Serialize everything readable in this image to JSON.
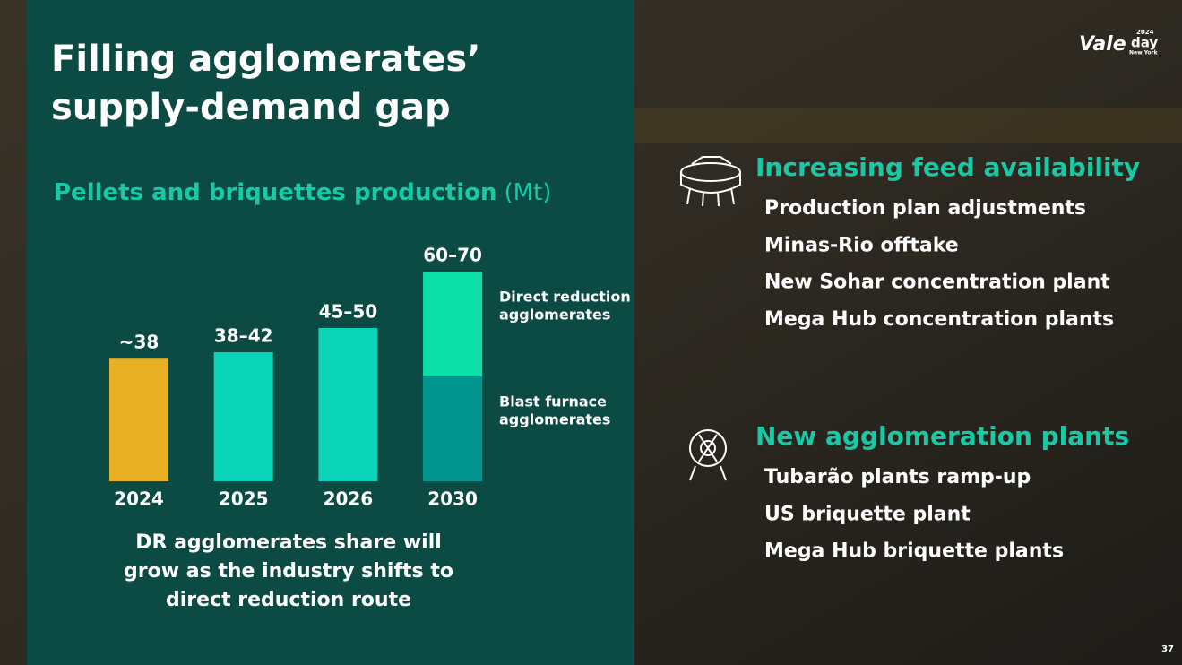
{
  "chart_data": {
    "type": "bar",
    "title": "Filling agglomerates’ supply-demand gap",
    "subtitle": "Pellets and briquettes production",
    "unit": "(Mt)",
    "categories": [
      "2024",
      "2025",
      "2026",
      "2030"
    ],
    "values": [
      38,
      40,
      47.5,
      65
    ],
    "value_labels": [
      "~38",
      "38–42",
      "45–50",
      "60–70"
    ],
    "colors": [
      "#e8b022",
      "#0ad4b8",
      "#0ad4b8",
      "#00968f"
    ],
    "series": [
      {
        "name": "Blast furnace agglomerates",
        "color": "#00968f",
        "values": [
          null,
          null,
          null,
          32.5
        ]
      },
      {
        "name": "Direct reduction agglomerates",
        "color": "#0ae0a8",
        "values": [
          null,
          null,
          null,
          32.5
        ]
      }
    ],
    "annotation": "DR agglomerates share will grow as the industry shifts to direct reduction route"
  },
  "logo": {
    "brand": "Vale",
    "word": "day",
    "year": "2024",
    "place": "New York"
  },
  "sections": [
    {
      "heading": "Increasing feed availability",
      "items": [
        "Production plan adjustments",
        "Minas-Rio offtake",
        "New Sohar concentration plant",
        "Mega Hub concentration plants"
      ]
    },
    {
      "heading": "New agglomeration plants",
      "items": [
        "Tubarão plants ramp-up",
        "US briquette plant",
        "Mega Hub briquette plants"
      ]
    }
  ],
  "page_number": "37"
}
